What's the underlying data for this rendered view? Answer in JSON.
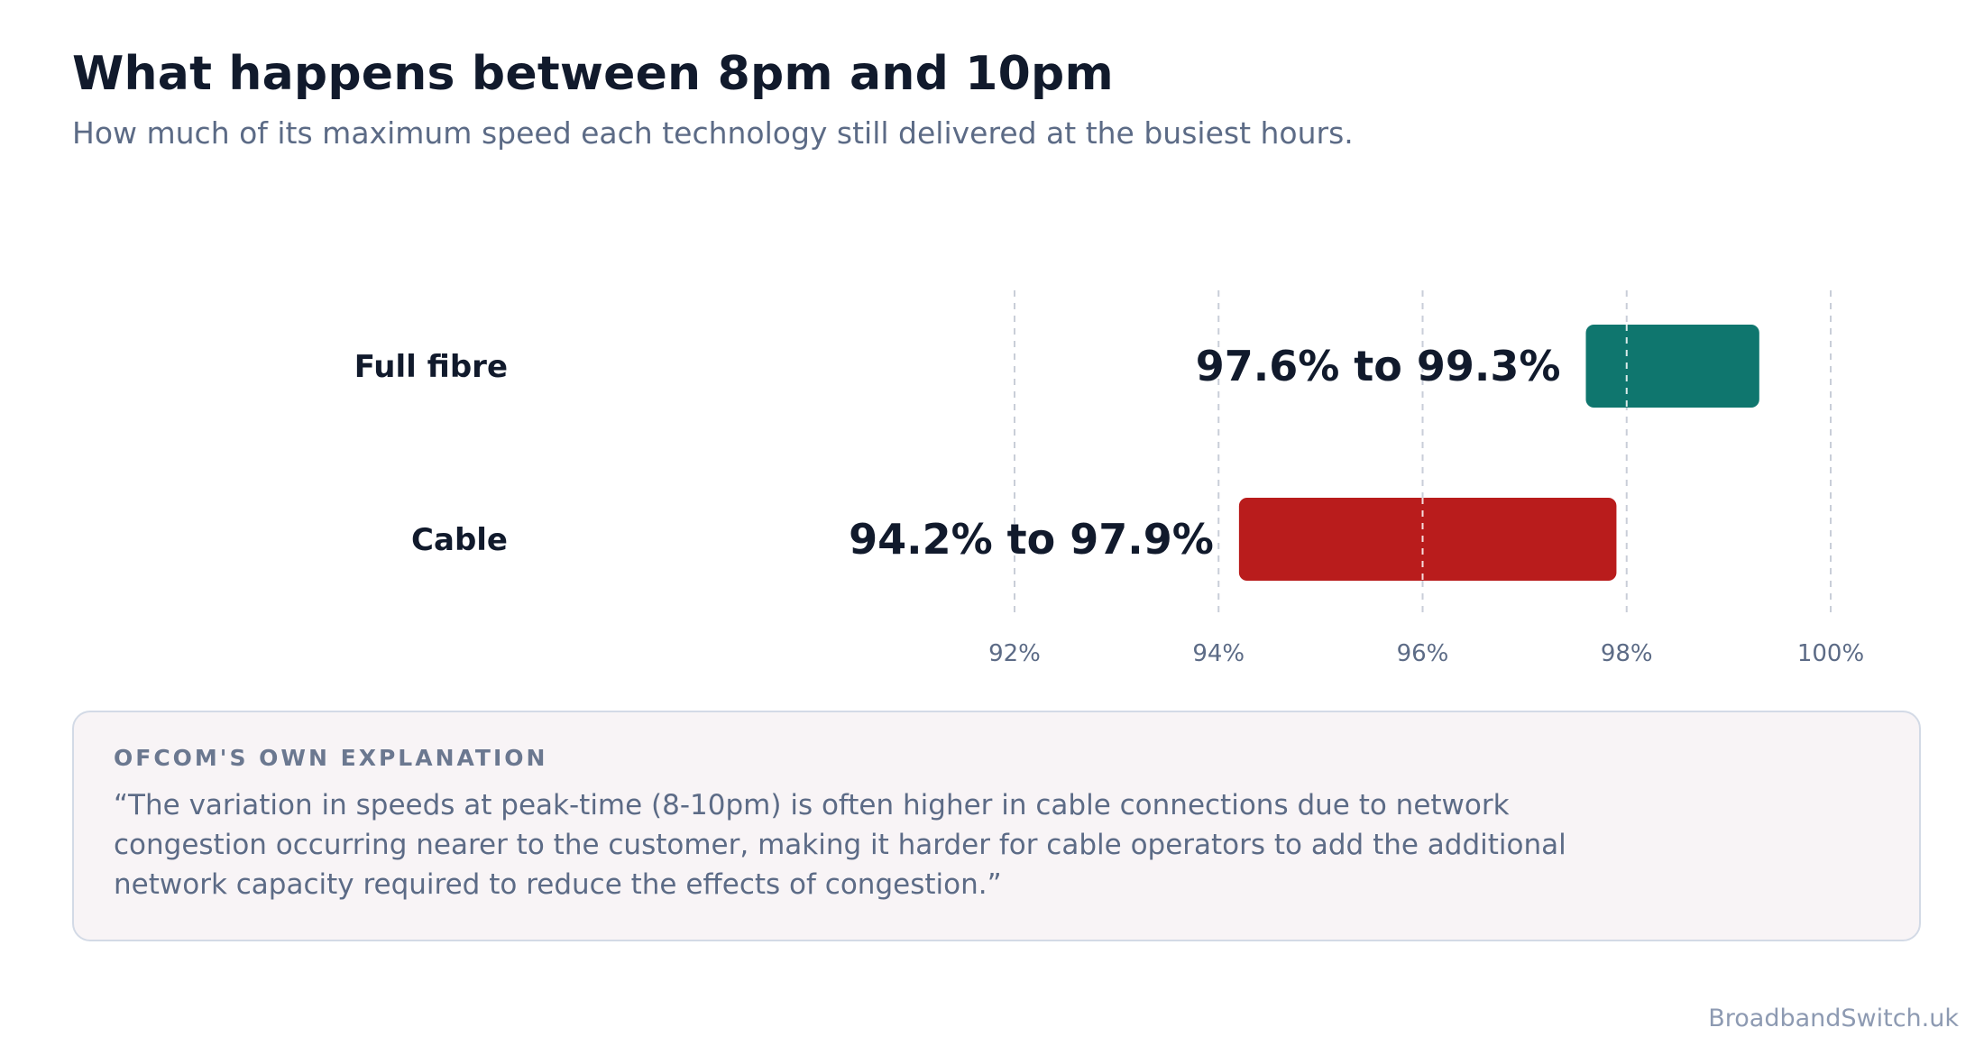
{
  "header": {
    "title": "What happens between 8pm and 10pm",
    "subtitle": "How much of its maximum speed each technology still delivered at the busiest hours."
  },
  "chart_data": {
    "type": "bar",
    "orientation": "horizontal-floating-range",
    "categories": [
      "Full fibre",
      "Cable"
    ],
    "ranges": [
      {
        "category": "Full fibre",
        "low": 97.6,
        "high": 99.3,
        "label": "97.6% to 99.3%",
        "color": "#0f766e"
      },
      {
        "category": "Cable",
        "low": 94.2,
        "high": 97.9,
        "label": "94.2% to 97.9%",
        "color": "#b91c1c"
      }
    ],
    "xlim": [
      92,
      100
    ],
    "xticks": [
      92,
      94,
      96,
      98,
      100
    ],
    "xtick_labels": [
      "92%",
      "94%",
      "96%",
      "98%",
      "100%"
    ],
    "grid": true
  },
  "note": {
    "heading": "OFCOM'S OWN EXPLANATION",
    "text": "“The variation in speeds at peak-time (8-10pm) is often higher in cable connections due to network congestion occurring nearer to the customer, making it harder for cable operators to add the additional network capacity required to reduce the effects of congestion.”"
  },
  "credit": "BroadbandSwitch.uk"
}
